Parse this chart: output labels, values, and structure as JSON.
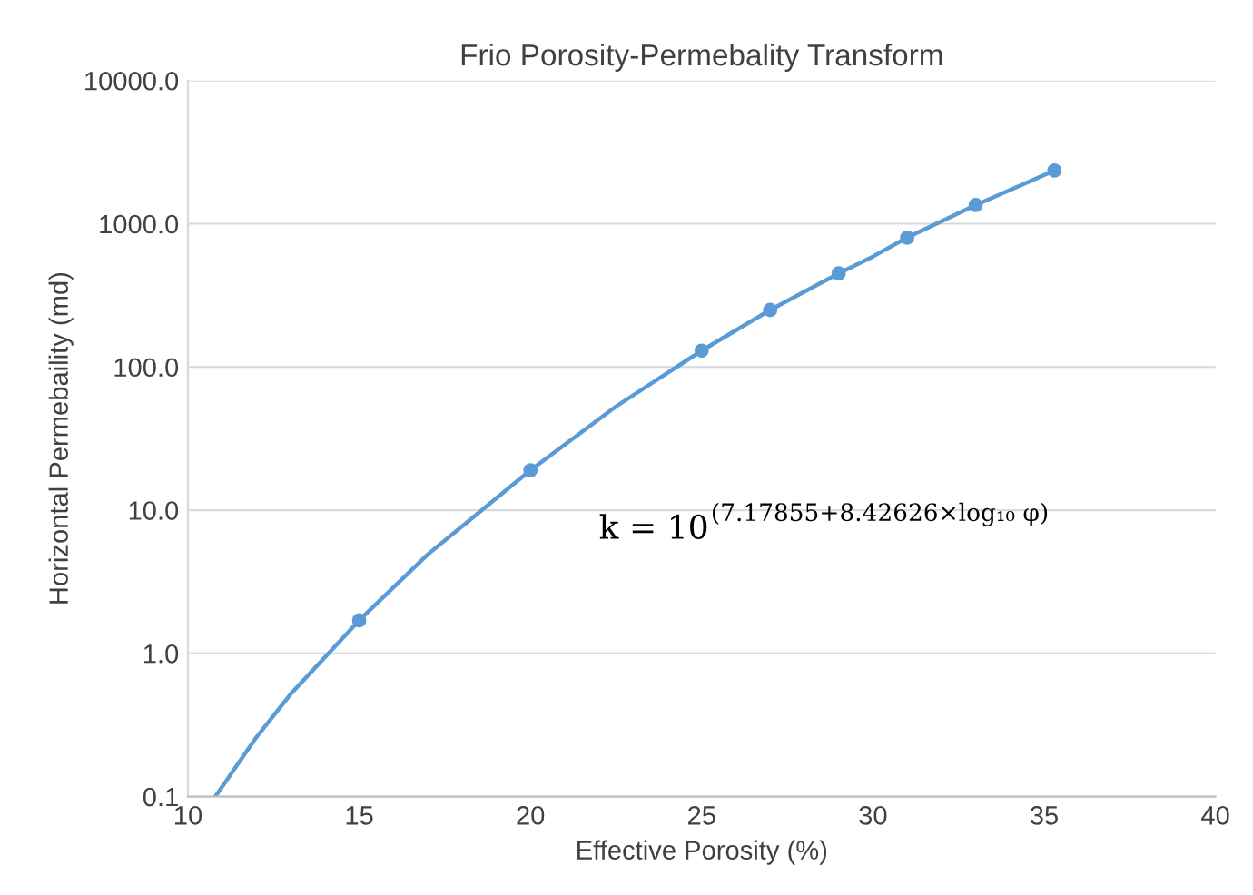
{
  "chart_data": {
    "type": "scatter",
    "title": "Frio Porosity-Permebality Transform",
    "xlabel": "Effective Porosity (%)",
    "ylabel": "Horizontal Permebaility (md)",
    "series": [
      {
        "type": "line",
        "color": "#5b9bd5",
        "marker": "none",
        "x": [
          10.8,
          12,
          13,
          15,
          17,
          20,
          22.5,
          25,
          27,
          29,
          30,
          31,
          33,
          35.3
        ],
        "values": [
          0.1,
          0.26,
          0.52,
          1.7,
          4.9,
          19,
          53,
          130,
          250,
          450,
          590,
          800,
          1350,
          2350
        ]
      },
      {
        "color": "#5b9bd5",
        "marker": "circle",
        "x": [
          15,
          20,
          25,
          27,
          29,
          31,
          33,
          35.3
        ],
        "values": [
          1.7,
          19,
          130,
          250,
          450,
          800,
          1350,
          2350
        ]
      }
    ],
    "log": "y",
    "xlim": [
      10,
      40
    ],
    "xticks": [
      10,
      15,
      20,
      25,
      30,
      35,
      40
    ],
    "ylim": [
      0.1,
      10000
    ],
    "yticks": [
      {
        "value": 0.1,
        "label": "0.1"
      },
      {
        "value": 1,
        "label": "1.0"
      },
      {
        "value": 10,
        "label": "10.0"
      },
      {
        "value": 100,
        "label": "100.0"
      },
      {
        "value": 1000,
        "label": "1000.0"
      },
      {
        "value": 10000,
        "label": "10000.0"
      }
    ],
    "grid": "y",
    "annotations": [
      "k = 10$^{(7.17855+8.42626×log₁₀ φ)}$"
    ]
  }
}
